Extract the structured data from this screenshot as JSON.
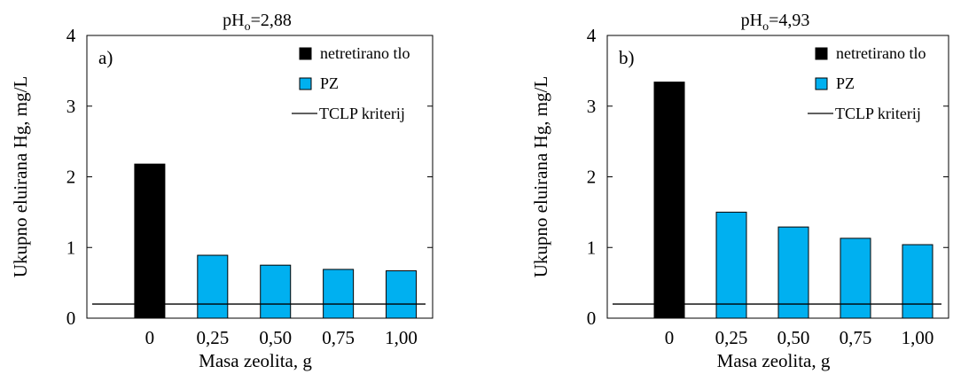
{
  "chart_data": [
    {
      "type": "bar",
      "panel_label": "a)",
      "title": {
        "main": "pH",
        "sub": "o",
        "value": "=2,88"
      },
      "xlabel": "Masa zeolita,  g",
      "ylabel": "Ukupno eluirana  Hg,  mg/L",
      "categories": [
        "0",
        "0,25",
        "0,50",
        "0,75",
        "1,00"
      ],
      "y_ticks": [
        "0",
        "1",
        "2",
        "3",
        "4"
      ],
      "ylim": [
        0,
        4
      ],
      "grid": false,
      "legend_position": "top-right",
      "series": [
        {
          "name": "netretirano tlo",
          "color": "#000000",
          "values": [
            2.18,
            null,
            null,
            null,
            null
          ]
        },
        {
          "name": "PZ",
          "color": "#00b0f0",
          "values": [
            null,
            0.89,
            0.75,
            0.69,
            0.67
          ]
        }
      ],
      "reference_line": {
        "name": "TCLP  kriterij",
        "value": 0.2
      }
    },
    {
      "type": "bar",
      "panel_label": "b)",
      "title": {
        "main": "pH",
        "sub": "o",
        "value": "=4,93"
      },
      "xlabel": "Masa zeolita,  g",
      "ylabel": "Ukupno eluirana  Hg,  mg/L",
      "categories": [
        "0",
        "0,25",
        "0,50",
        "0,75",
        "1,00"
      ],
      "y_ticks": [
        "0",
        "1",
        "2",
        "3",
        "4"
      ],
      "ylim": [
        0,
        4
      ],
      "grid": false,
      "legend_position": "top-right",
      "series": [
        {
          "name": "netretirano tlo",
          "color": "#000000",
          "values": [
            3.34,
            null,
            null,
            null,
            null
          ]
        },
        {
          "name": "PZ",
          "color": "#00b0f0",
          "values": [
            null,
            1.5,
            1.29,
            1.13,
            1.04
          ]
        }
      ],
      "reference_line": {
        "name": "TCLP  kriterij",
        "value": 0.2
      }
    }
  ]
}
